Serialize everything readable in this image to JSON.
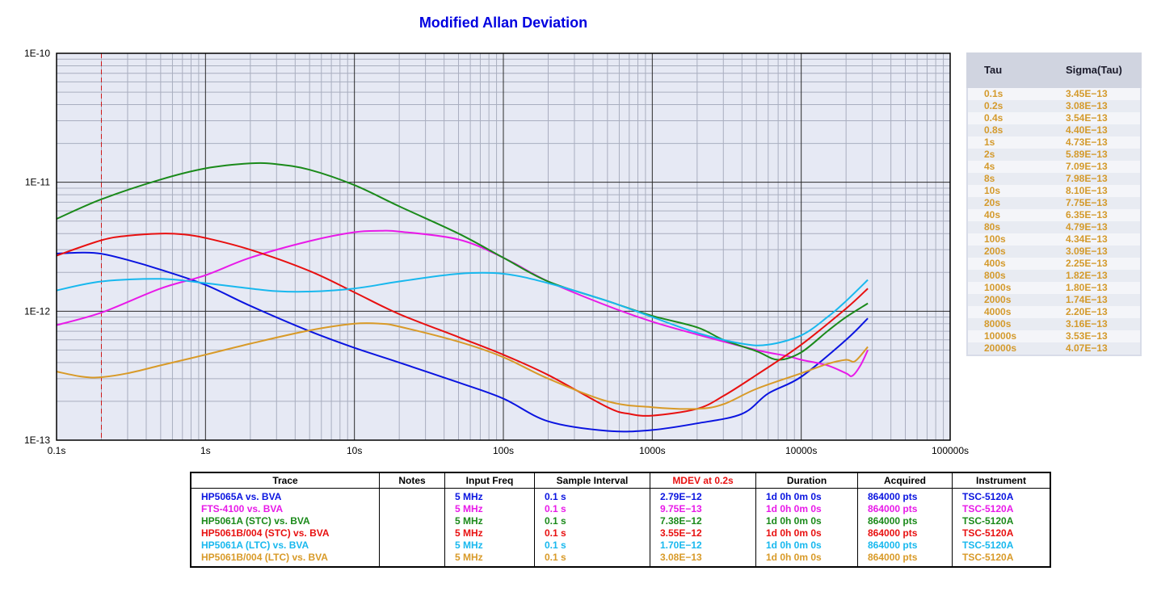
{
  "chart_data": {
    "type": "line",
    "title": "Modified Allan Deviation",
    "x_scale": "log",
    "y_scale": "log",
    "xlim": [
      0.1,
      100000
    ],
    "ylim": [
      1e-13,
      1e-10
    ],
    "x_ticks": [
      "0.1s",
      "1s",
      "10s",
      "100s",
      "1000s",
      "10000s",
      "100000s"
    ],
    "y_ticks": [
      "1E-13",
      "1E-12",
      "1E-11",
      "1E-10"
    ],
    "grid": true,
    "marker_tau": 0.2,
    "series": [
      {
        "name": "HP5065A vs. BVA",
        "color": "#0a14e0",
        "x": [
          0.1,
          0.15,
          0.2,
          0.3,
          0.5,
          1,
          2,
          5,
          10,
          20,
          50,
          100,
          200,
          500,
          1000,
          2000,
          4000,
          6000,
          10000,
          20000,
          28000
        ],
        "y": [
          2.8e-12,
          2.85e-12,
          2.79e-12,
          2.5e-12,
          2.1e-12,
          1.6e-12,
          1.1e-12,
          7e-13,
          5.2e-13,
          4e-13,
          2.8e-13,
          2.1e-13,
          1.4e-13,
          1.18e-13,
          1.2e-13,
          1.35e-13,
          1.6e-13,
          2.3e-13,
          3.1e-13,
          6e-13,
          8.8e-13
        ]
      },
      {
        "name": "FTS-4100 vs. BVA",
        "color": "#e81ae8",
        "x": [
          0.1,
          0.2,
          0.5,
          1,
          2,
          5,
          10,
          15,
          20,
          50,
          100,
          200,
          500,
          1000,
          2000,
          5000,
          8000,
          10000,
          15000,
          20000,
          22000,
          25000,
          28000
        ],
        "y": [
          7.8e-13,
          9.75e-13,
          1.5e-12,
          1.9e-12,
          2.6e-12,
          3.5e-12,
          4.1e-12,
          4.2e-12,
          4.15e-12,
          3.6e-12,
          2.6e-12,
          1.7e-12,
          1.1e-12,
          8.3e-13,
          6.6e-13,
          5e-13,
          4.5e-13,
          4.2e-13,
          3.8e-13,
          3.3e-13,
          3.15e-13,
          3.8e-13,
          5e-13
        ]
      },
      {
        "name": "HP5061A (STC) vs. BVA",
        "color": "#1a8a1a",
        "x": [
          0.1,
          0.2,
          0.5,
          1,
          2,
          3,
          5,
          10,
          20,
          50,
          100,
          200,
          500,
          1000,
          2000,
          3000,
          5000,
          7000,
          10000,
          15000,
          20000,
          28000
        ],
        "y": [
          5.2e-12,
          7.38e-12,
          1.05e-11,
          1.28e-11,
          1.4e-11,
          1.38e-11,
          1.25e-11,
          9.5e-12,
          6.5e-12,
          4e-12,
          2.6e-12,
          1.7e-12,
          1.2e-12,
          9.2e-13,
          7.5e-13,
          6e-13,
          4.9e-13,
          4.2e-13,
          4.8e-13,
          7e-13,
          9e-13,
          1.15e-12
        ]
      },
      {
        "name": "HP5061B/004 (STC) vs. BVA",
        "color": "#e81010",
        "x": [
          0.1,
          0.2,
          0.3,
          0.5,
          0.7,
          1,
          2,
          5,
          10,
          20,
          50,
          100,
          200,
          500,
          700,
          1000,
          2000,
          3000,
          5000,
          10000,
          20000,
          28000
        ],
        "y": [
          2.7e-12,
          3.55e-12,
          3.85e-12,
          4e-12,
          3.95e-12,
          3.7e-12,
          3e-12,
          2.05e-12,
          1.4e-12,
          9.5e-13,
          6.3e-13,
          4.6e-13,
          3.2e-13,
          1.8e-13,
          1.6e-13,
          1.55e-13,
          1.75e-13,
          2.2e-13,
          3.2e-13,
          5.5e-13,
          1.05e-12,
          1.5e-12
        ]
      },
      {
        "name": "HP5061A (LTC) vs. BVA",
        "color": "#18b8ee",
        "x": [
          0.1,
          0.2,
          0.5,
          1,
          2,
          3,
          5,
          10,
          20,
          50,
          100,
          200,
          500,
          1000,
          2000,
          4000,
          6000,
          10000,
          15000,
          20000,
          28000
        ],
        "y": [
          1.45e-12,
          1.7e-12,
          1.78e-12,
          1.65e-12,
          1.5e-12,
          1.43e-12,
          1.42e-12,
          1.5e-12,
          1.7e-12,
          1.95e-12,
          1.95e-12,
          1.65e-12,
          1.2e-12,
          9e-13,
          6.8e-13,
          5.6e-13,
          5.5e-13,
          6.5e-13,
          9e-13,
          1.2e-12,
          1.75e-12
        ]
      },
      {
        "name": "HP5061B/004 (LTC) vs. BVA",
        "color": "#d89a28",
        "x": [
          0.1,
          0.15,
          0.2,
          0.3,
          0.5,
          1,
          2,
          5,
          10,
          15,
          20,
          50,
          100,
          200,
          500,
          1000,
          2000,
          3000,
          5000,
          10000,
          15000,
          20000,
          23000,
          28000
        ],
        "y": [
          3.4e-13,
          3.1e-13,
          3.08e-13,
          3.3e-13,
          3.8e-13,
          4.6e-13,
          5.6e-13,
          7.1e-13,
          8e-13,
          8e-13,
          7.6e-13,
          5.8e-13,
          4.4e-13,
          3e-13,
          2e-13,
          1.8e-13,
          1.75e-13,
          1.9e-13,
          2.5e-13,
          3.3e-13,
          3.9e-13,
          4.2e-13,
          4.1e-13,
          5.3e-13
        ]
      }
    ]
  },
  "tau_table": {
    "col_tau": "Tau",
    "col_sigma": "Sigma(Tau)",
    "rows": [
      [
        "0.1s",
        "3.45E−13"
      ],
      [
        "0.2s",
        "3.08E−13"
      ],
      [
        "0.4s",
        "3.54E−13"
      ],
      [
        "0.8s",
        "4.40E−13"
      ],
      [
        "1s",
        "4.73E−13"
      ],
      [
        "2s",
        "5.89E−13"
      ],
      [
        "4s",
        "7.09E−13"
      ],
      [
        "8s",
        "7.98E−13"
      ],
      [
        "10s",
        "8.10E−13"
      ],
      [
        "20s",
        "7.75E−13"
      ],
      [
        "40s",
        "6.35E−13"
      ],
      [
        "80s",
        "4.79E−13"
      ],
      [
        "100s",
        "4.34E−13"
      ],
      [
        "200s",
        "3.09E−13"
      ],
      [
        "400s",
        "2.25E−13"
      ],
      [
        "800s",
        "1.82E−13"
      ],
      [
        "1000s",
        "1.80E−13"
      ],
      [
        "2000s",
        "1.74E−13"
      ],
      [
        "4000s",
        "2.20E−13"
      ],
      [
        "8000s",
        "3.16E−13"
      ],
      [
        "10000s",
        "3.53E−13"
      ],
      [
        "20000s",
        "4.07E−13"
      ]
    ]
  },
  "legend": {
    "headers": [
      "Trace",
      "Notes",
      "Input Freq",
      "Sample Interval",
      "MDEV at 0.2s",
      "Duration",
      "Acquired",
      "Instrument"
    ],
    "mdev_header_color": "#e81010",
    "rows": [
      {
        "color": "#0a14e0",
        "cells": [
          "HP5065A vs. BVA",
          "",
          "5 MHz",
          "0.1 s",
          "2.79E−12",
          "1d 0h 0m 0s",
          "864000 pts",
          "TSC-5120A"
        ]
      },
      {
        "color": "#e81ae8",
        "cells": [
          "FTS-4100 vs. BVA",
          "",
          "5 MHz",
          "0.1 s",
          "9.75E−13",
          "1d 0h 0m 0s",
          "864000 pts",
          "TSC-5120A"
        ]
      },
      {
        "color": "#1a8a1a",
        "cells": [
          "HP5061A (STC) vs. BVA",
          "",
          "5 MHz",
          "0.1 s",
          "7.38E−12",
          "1d 0h 0m 0s",
          "864000 pts",
          "TSC-5120A"
        ]
      },
      {
        "color": "#e81010",
        "cells": [
          "HP5061B/004 (STC) vs. BVA",
          "",
          "5 MHz",
          "0.1 s",
          "3.55E−12",
          "1d 0h 0m 0s",
          "864000 pts",
          "TSC-5120A"
        ]
      },
      {
        "color": "#18b8ee",
        "cells": [
          "HP5061A (LTC) vs. BVA",
          "",
          "5 MHz",
          "0.1 s",
          "1.70E−12",
          "1d 0h 0m 0s",
          "864000 pts",
          "TSC-5120A"
        ]
      },
      {
        "color": "#d89a28",
        "cells": [
          "HP5061B/004 (LTC) vs. BVA",
          "",
          "5 MHz",
          "0.1 s",
          "3.08E−13",
          "1d 0h 0m 0s",
          "864000 pts",
          "TSC-5120A"
        ]
      }
    ]
  }
}
